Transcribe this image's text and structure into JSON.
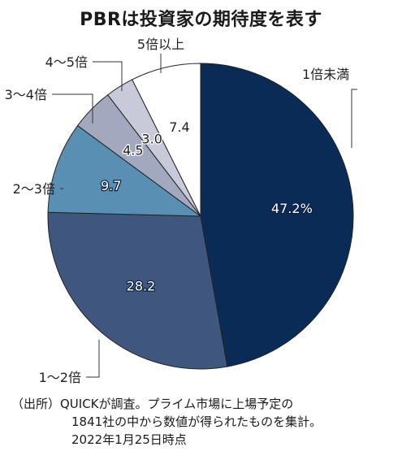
{
  "chart_data": {
    "type": "pie",
    "title": "PBRは投資家の期待度を表す",
    "categories": [
      "1倍未満",
      "1～2倍",
      "2～3倍",
      "3～4倍",
      "4～5倍",
      "5倍以上"
    ],
    "values": [
      47.2,
      28.2,
      9.7,
      4.5,
      3.0,
      7.4
    ],
    "value_labels": [
      "47.2%",
      "28.2",
      "9.7",
      "4.5",
      "3.0",
      "7.4"
    ],
    "colors": [
      "#0b2b57",
      "#3f577e",
      "#5a8fb4",
      "#a2a8bd",
      "#c8cad9",
      "#ffffff"
    ],
    "unit": "%"
  },
  "source": {
    "line1": "（出所）QUICKが調査。プライム市場に上場予定の",
    "line2": "1841社の中から数値が得られたものを集計。",
    "line3": "2022年1月25日時点"
  }
}
